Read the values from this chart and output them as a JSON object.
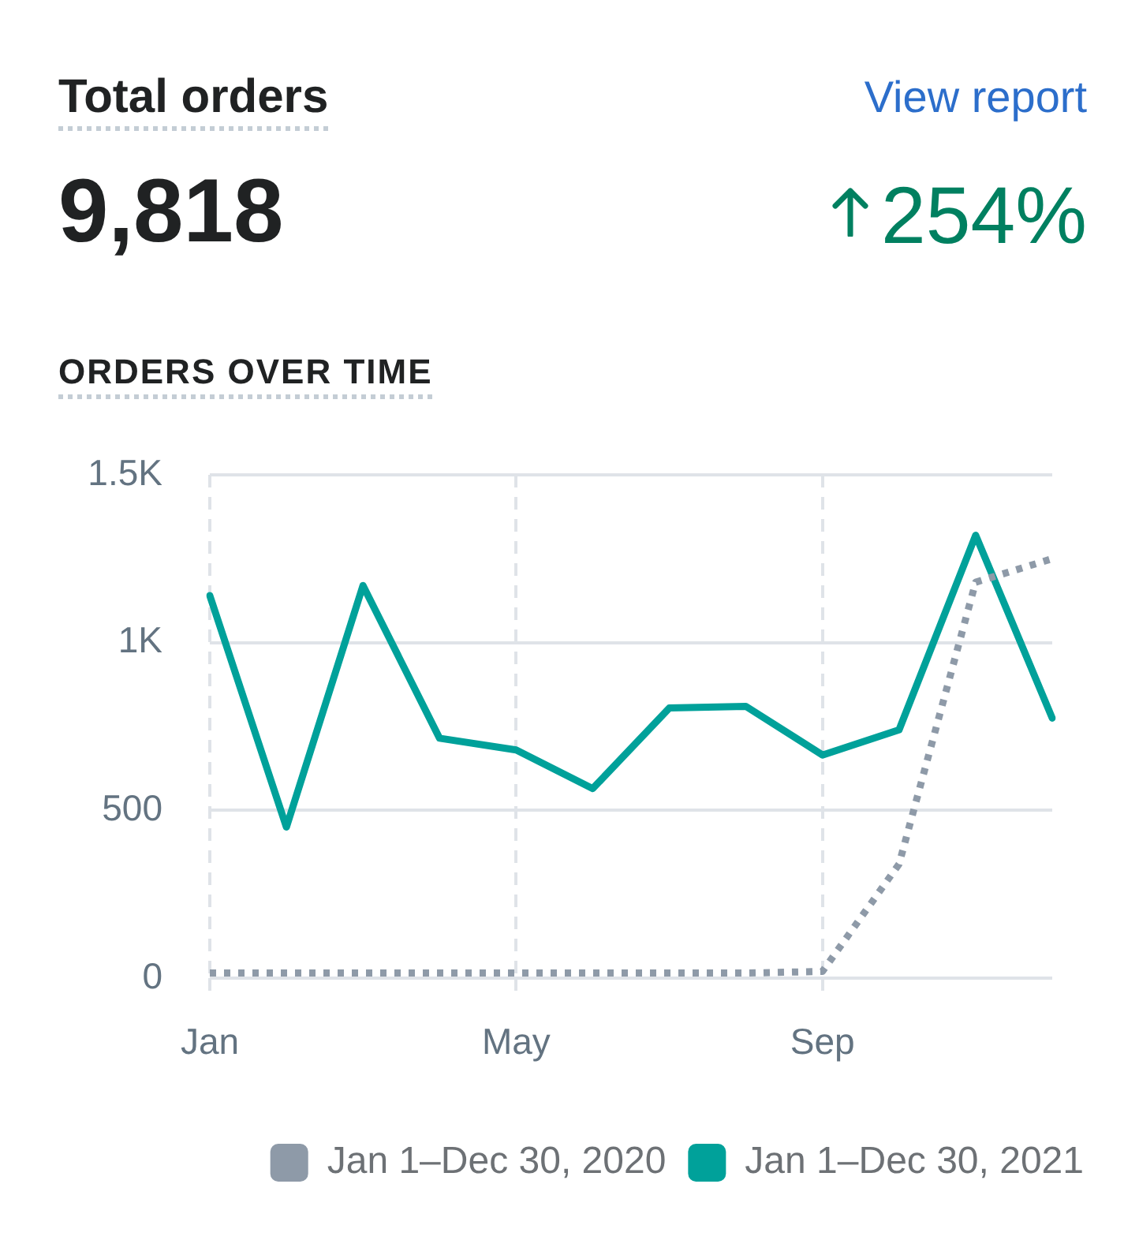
{
  "chart_data": {
    "type": "line",
    "title": "Total orders",
    "subtitle": "ORDERS OVER TIME",
    "annotations": [
      "9,818",
      "View report",
      "254%"
    ],
    "categories": [
      "Jan",
      null,
      null,
      null,
      "May",
      null,
      null,
      null,
      "Sep",
      null,
      null,
      null
    ],
    "series": [
      {
        "name": "Jan 1–Dec 30, 2020",
        "color": "#8e9aa8",
        "line_style": "dotted",
        "values": [
          15,
          15,
          15,
          15,
          15,
          15,
          15,
          15,
          20,
          340,
          1180,
          1250
        ]
      },
      {
        "name": "Jan 1–Dec 30, 2021",
        "color": "#00a19a",
        "line_style": "solid",
        "values": [
          1140,
          450,
          1170,
          715,
          680,
          565,
          805,
          810,
          665,
          740,
          1320,
          775
        ]
      }
    ],
    "ylim": [
      0,
      1500
    ],
    "yticks": [
      0,
      500,
      {
        "value": 1000,
        "label": "1K"
      },
      {
        "value": 1500,
        "label": "1.5K"
      }
    ],
    "grid": true,
    "legend": "bottom right"
  }
}
